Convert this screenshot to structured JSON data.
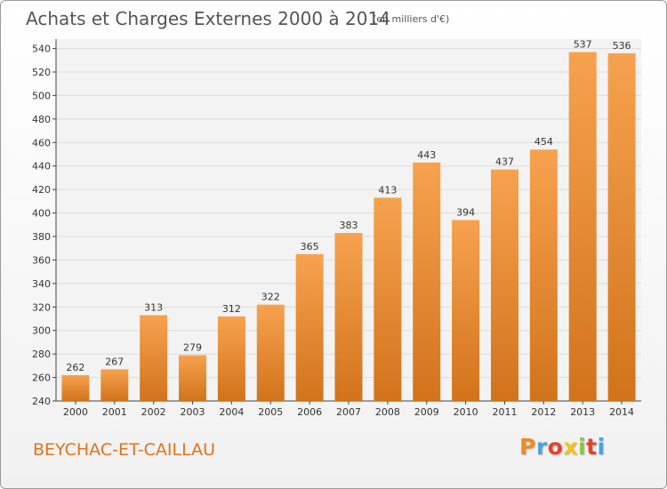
{
  "header": {
    "title": "Achats et Charges Externes 2000 à 2014",
    "unit": "(en milliers d'€)"
  },
  "footer": {
    "place": "BEYCHAC-ET-CAILLAU",
    "logo": {
      "letters": [
        "P",
        "r",
        "o",
        "x",
        "i",
        "t",
        "i"
      ],
      "colors": [
        "#f08a24",
        "#4aa3df",
        "#e8412c",
        "#f2c21b",
        "#8cc63f",
        "#e8412c",
        "#4aa3df"
      ]
    }
  },
  "colors": {
    "bar_light": "#f7a24f",
    "bar_dark": "#d2731b",
    "title": "#555555",
    "place": "#e0741c"
  },
  "chart_data": {
    "type": "bar",
    "categories": [
      "2000",
      "2001",
      "2002",
      "2003",
      "2004",
      "2005",
      "2006",
      "2007",
      "2008",
      "2009",
      "2010",
      "2011",
      "2012",
      "2013",
      "2014"
    ],
    "values": [
      262,
      267,
      313,
      279,
      312,
      322,
      365,
      383,
      413,
      443,
      394,
      437,
      454,
      537,
      536
    ],
    "ylim": [
      240,
      548
    ],
    "yticks": [
      240,
      260,
      280,
      300,
      320,
      340,
      360,
      380,
      400,
      420,
      440,
      460,
      480,
      500,
      520,
      540
    ],
    "grid": true,
    "legend": "none"
  }
}
